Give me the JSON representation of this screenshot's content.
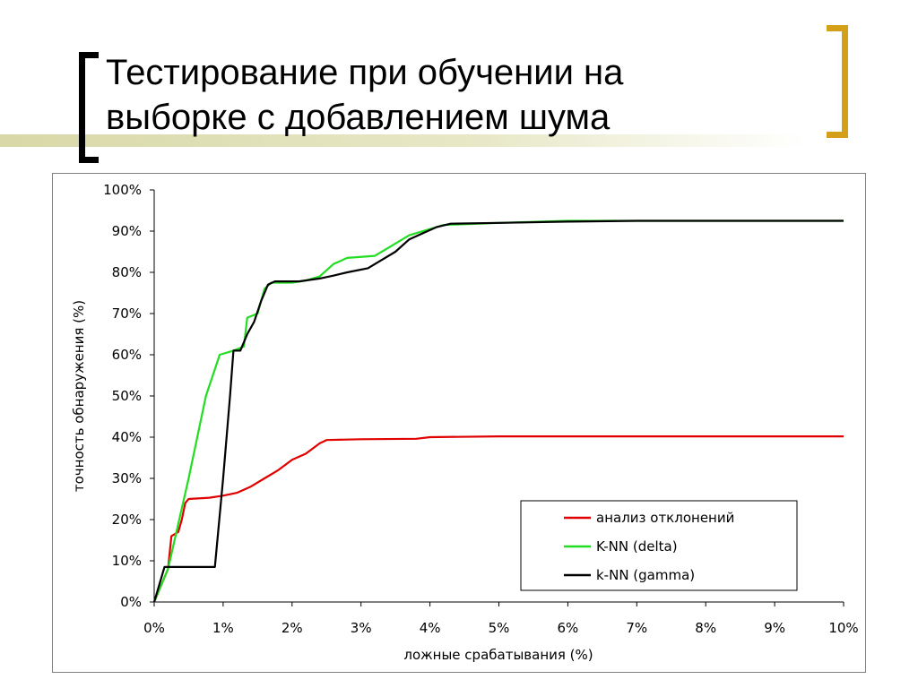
{
  "slide": {
    "title_line1": "Тестирование при обучении на",
    "title_line2": "выборке с добавлением шума"
  },
  "colors": {
    "bracket_left": "#000000",
    "bracket_right": "#d4a017",
    "deco_bar": "#d8d8a8"
  },
  "chart_data": {
    "type": "line",
    "xlabel": "ложные срабатывания (%)",
    "ylabel": "точность обнаружения (%)",
    "xlim": [
      0,
      10
    ],
    "ylim": [
      0,
      100
    ],
    "x_ticks": [
      "0%",
      "1%",
      "2%",
      "3%",
      "4%",
      "5%",
      "6%",
      "7%",
      "8%",
      "9%",
      "10%"
    ],
    "y_ticks": [
      "0%",
      "10%",
      "20%",
      "30%",
      "40%",
      "50%",
      "60%",
      "70%",
      "80%",
      "90%",
      "100%"
    ],
    "grid": false,
    "legend_position": "bottom-right",
    "series": [
      {
        "name": "анализ отклонений",
        "color": "#e00000",
        "points": [
          [
            0,
            0
          ],
          [
            0.2,
            8
          ],
          [
            0.25,
            16
          ],
          [
            0.35,
            17
          ],
          [
            0.4,
            20
          ],
          [
            0.45,
            24
          ],
          [
            0.5,
            25
          ],
          [
            0.8,
            25.3
          ],
          [
            1.0,
            25.8
          ],
          [
            1.2,
            26.5
          ],
          [
            1.4,
            28
          ],
          [
            1.6,
            30
          ],
          [
            1.8,
            32
          ],
          [
            2.0,
            34.5
          ],
          [
            2.2,
            36
          ],
          [
            2.4,
            38.5
          ],
          [
            2.5,
            39.3
          ],
          [
            3.0,
            39.5
          ],
          [
            3.8,
            39.6
          ],
          [
            4.0,
            40
          ],
          [
            5.0,
            40.2
          ],
          [
            10,
            40.2
          ]
        ]
      },
      {
        "name": "K-NN (delta)",
        "color": "#22dd22",
        "points": [
          [
            0,
            0
          ],
          [
            0.2,
            8
          ],
          [
            0.5,
            30
          ],
          [
            0.75,
            50
          ],
          [
            0.95,
            60
          ],
          [
            1.15,
            61
          ],
          [
            1.3,
            62
          ],
          [
            1.35,
            69
          ],
          [
            1.5,
            70
          ],
          [
            1.6,
            76
          ],
          [
            1.7,
            77.5
          ],
          [
            2.0,
            77.5
          ],
          [
            2.2,
            78
          ],
          [
            2.4,
            79
          ],
          [
            2.6,
            82
          ],
          [
            2.8,
            83.5
          ],
          [
            3.2,
            84
          ],
          [
            3.4,
            86
          ],
          [
            3.7,
            89
          ],
          [
            4.0,
            90.5
          ],
          [
            4.2,
            91.5
          ],
          [
            5.0,
            92
          ],
          [
            6.0,
            92.5
          ],
          [
            7.0,
            92.5
          ],
          [
            10,
            92.5
          ]
        ]
      },
      {
        "name": "k-NN (gamma)",
        "color": "#000000",
        "points": [
          [
            0,
            0
          ],
          [
            0.15,
            8.5
          ],
          [
            0.88,
            8.5
          ],
          [
            1.0,
            30
          ],
          [
            1.1,
            50
          ],
          [
            1.15,
            61
          ],
          [
            1.25,
            61
          ],
          [
            1.35,
            65
          ],
          [
            1.45,
            68
          ],
          [
            1.55,
            73
          ],
          [
            1.65,
            77
          ],
          [
            1.75,
            77.8
          ],
          [
            2.1,
            77.8
          ],
          [
            2.4,
            78.5
          ],
          [
            2.6,
            79.2
          ],
          [
            2.8,
            80
          ],
          [
            3.1,
            81
          ],
          [
            3.3,
            83
          ],
          [
            3.5,
            85
          ],
          [
            3.7,
            88
          ],
          [
            3.9,
            89.5
          ],
          [
            4.1,
            91
          ],
          [
            4.3,
            91.8
          ],
          [
            5.0,
            92
          ],
          [
            6.0,
            92.3
          ],
          [
            7.0,
            92.5
          ],
          [
            10,
            92.5
          ]
        ]
      }
    ]
  }
}
